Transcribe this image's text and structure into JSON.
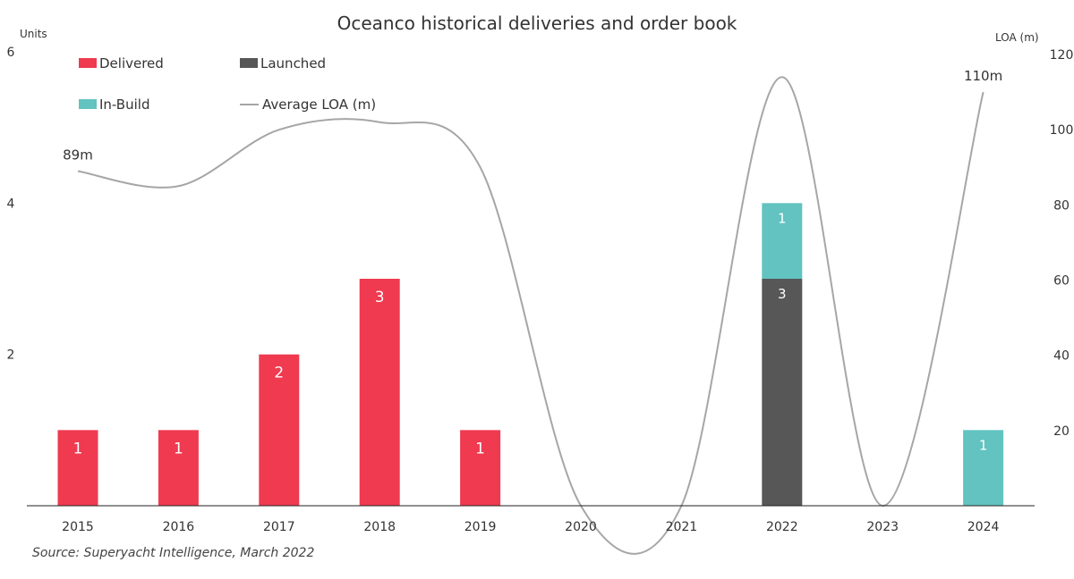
{
  "chart_data": {
    "type": "bar",
    "title": "Oceanco historical deliveries and order book",
    "ylabel": "Units",
    "y2label": "LOA (m)",
    "ylim": [
      0,
      6
    ],
    "y2lim": [
      0,
      120
    ],
    "yticks": [
      "2",
      "4",
      "6"
    ],
    "y2ticks": [
      "20",
      "40",
      "60",
      "80",
      "100",
      "120"
    ],
    "grid": false,
    "legend_placement": "top-left",
    "categories": [
      "2015",
      "2016",
      "2017",
      "2018",
      "2019",
      "2020",
      "2021",
      "2022",
      "2023",
      "2024"
    ],
    "series": [
      {
        "name": "Delivered",
        "color": "#EF3A50",
        "values": [
          1,
          1,
          2,
          3,
          1,
          0,
          0,
          0,
          0,
          0
        ]
      },
      {
        "name": "Launched",
        "color": "#575757",
        "values": [
          0,
          0,
          0,
          0,
          0,
          0,
          0,
          3,
          0,
          0
        ]
      },
      {
        "name": "In-Build",
        "color": "#62C3C0",
        "values": [
          0,
          0,
          0,
          0,
          0,
          0,
          0,
          1,
          0,
          1
        ]
      }
    ],
    "line": {
      "name": "Average LOA (m)",
      "color": "#A6A6A6",
      "axis": "right",
      "values": [
        89,
        85,
        100,
        102,
        90,
        0,
        0,
        114,
        0,
        110
      ]
    },
    "annotations": [
      {
        "category": "2015",
        "text": "89m"
      },
      {
        "category": "2024",
        "text": "110m"
      }
    ],
    "source": "Source: Superyacht Intelligence, March 2022"
  }
}
